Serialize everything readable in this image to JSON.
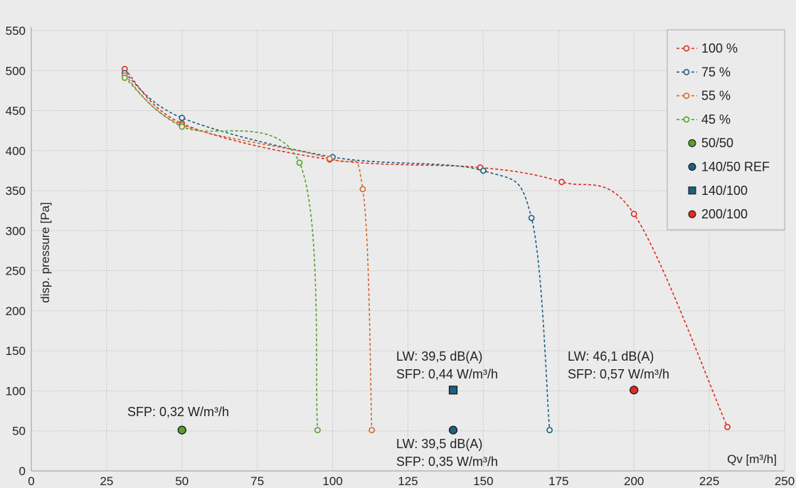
{
  "chart_data": {
    "type": "line",
    "xlabel": "Qv [m³/h]",
    "ylabel": "disp. pressure [Pa]",
    "xlim": [
      0,
      250
    ],
    "ylim": [
      0,
      550
    ],
    "xticks": [
      0,
      25,
      50,
      75,
      100,
      125,
      150,
      175,
      200,
      225,
      250
    ],
    "yticks": [
      0,
      50,
      100,
      150,
      200,
      250,
      300,
      350,
      400,
      450,
      500,
      550
    ],
    "grid": true,
    "legend": "top-right",
    "background": "#ebebeb",
    "series": [
      {
        "name": "100 %",
        "color": "#e02b20",
        "x": [
          31,
          50,
          99,
          149,
          176,
          200,
          231
        ],
        "y": [
          502,
          434,
          389,
          379,
          361,
          321,
          55
        ]
      },
      {
        "name": "75 %",
        "color": "#1f5f80",
        "x": [
          31,
          50,
          100,
          150,
          166,
          172
        ],
        "y": [
          497,
          441,
          392,
          375,
          316,
          51
        ]
      },
      {
        "name": "55 %",
        "color": "#d2692e",
        "x": [
          31,
          50,
          99,
          110,
          113
        ],
        "y": [
          494,
          432,
          390,
          352,
          51
        ]
      },
      {
        "name": "45 %",
        "color": "#5a9e2f",
        "x": [
          31,
          50,
          89,
          95
        ],
        "y": [
          491,
          430,
          385,
          51
        ]
      }
    ],
    "markers": [
      {
        "name": "50/50",
        "shape": "circle",
        "color": "#5a9e2f",
        "x": 50,
        "y": 51
      },
      {
        "name": "140/50 REF",
        "shape": "circle",
        "color": "#1f5f80",
        "x": 140,
        "y": 51
      },
      {
        "name": "140/100",
        "shape": "square",
        "color": "#1f5f80",
        "x": 140,
        "y": 101
      },
      {
        "name": "200/100",
        "shape": "circle",
        "color": "#e02b20",
        "x": 200,
        "y": 101
      }
    ],
    "annotations": [
      {
        "lines": [
          "SFP:  0,32 W/m³/h"
        ]
      },
      {
        "lines": [
          "LW:   39,5 dB(A)",
          "SFP: 0,35 W/m³/h"
        ]
      },
      {
        "lines": [
          "LW:   39,5 dB(A)",
          "SFP:  0,44 W/m³/h"
        ]
      },
      {
        "lines": [
          "LW:  46,1 dB(A)",
          "SFP: 0,57 W/m³/h"
        ]
      }
    ]
  }
}
